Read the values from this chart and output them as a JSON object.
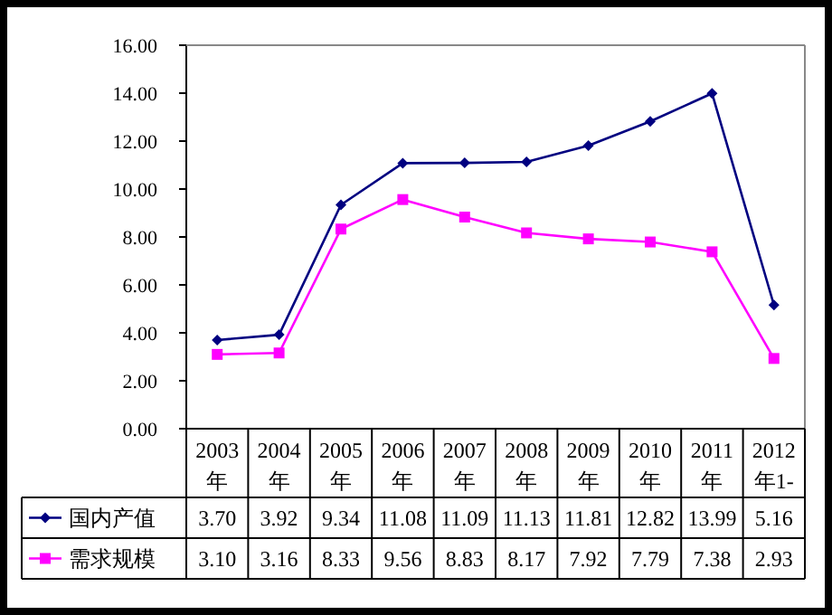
{
  "chart_data": {
    "type": "line",
    "categories": [
      "2003年",
      "2004年",
      "2005年",
      "2006年",
      "2007年",
      "2008年",
      "2009年",
      "2010年",
      "2011年",
      "2012年1-"
    ],
    "series": [
      {
        "name": "国内产值",
        "color": "#000080",
        "marker": "diamond",
        "values": [
          3.7,
          3.92,
          9.34,
          11.08,
          11.09,
          11.13,
          11.81,
          12.82,
          13.99,
          5.16
        ],
        "value_labels": [
          "3.70",
          "3.92",
          "9.34",
          "11.08",
          "11.09",
          "11.13",
          "11.81",
          "12.82",
          "13.99",
          "5.16"
        ]
      },
      {
        "name": "需求规模",
        "color": "#ff00ff",
        "marker": "square",
        "values": [
          3.1,
          3.16,
          8.33,
          9.56,
          8.83,
          8.17,
          7.92,
          7.79,
          7.38,
          2.93
        ],
        "value_labels": [
          "3.10",
          "3.16",
          "8.33",
          "9.56",
          "8.83",
          "8.17",
          "7.92",
          "7.79",
          "7.38",
          "2.93"
        ]
      }
    ],
    "ylim": [
      0,
      16
    ],
    "yticks": [
      {
        "value": 0,
        "label": "0.00"
      },
      {
        "value": 2,
        "label": "2.00"
      },
      {
        "value": 4,
        "label": "4.00"
      },
      {
        "value": 6,
        "label": "6.00"
      },
      {
        "value": 8,
        "label": "8.00"
      },
      {
        "value": 10,
        "label": "10.00"
      },
      {
        "value": 12,
        "label": "12.00"
      },
      {
        "value": 14,
        "label": "14.00"
      },
      {
        "value": 16,
        "label": "16.00"
      }
    ],
    "grid": false,
    "legend": "bottom left",
    "line_style": "solid"
  }
}
